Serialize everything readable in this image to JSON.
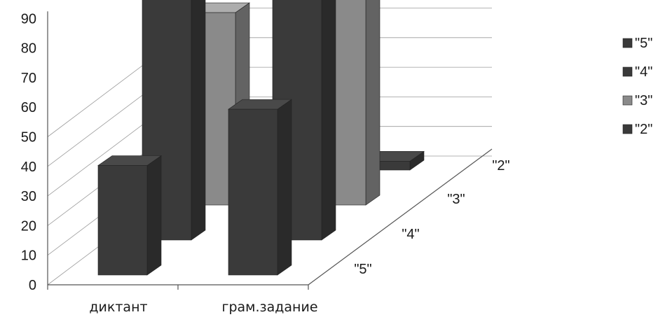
{
  "chart_data": {
    "type": "bar",
    "view": "3d-column",
    "categories": [
      "диктант",
      "грам.задание"
    ],
    "series": [
      {
        "name": "\"5\"",
        "values": [
          37,
          56
        ],
        "color": "#3a3a3a"
      },
      {
        "name": "\"4\"",
        "values": [
          95,
          83
        ],
        "color": "#3a3a3a"
      },
      {
        "name": "\"3\"",
        "values": [
          65,
          85
        ],
        "color": "#8a8a8a"
      },
      {
        "name": "\"2\"",
        "values": [
          0,
          3
        ],
        "color": "#3a3a3a"
      }
    ],
    "ylim": [
      0,
      90
    ],
    "yticks": [
      "0",
      "10",
      "20",
      "30",
      "40",
      "50",
      "60",
      "70",
      "80",
      "90"
    ],
    "depth_labels": [
      "\"5\"",
      "\"4\"",
      "\"3\"",
      "\"2\""
    ],
    "legend_position": "right",
    "grid": true,
    "title": "",
    "xlabel": "",
    "ylabel": ""
  }
}
